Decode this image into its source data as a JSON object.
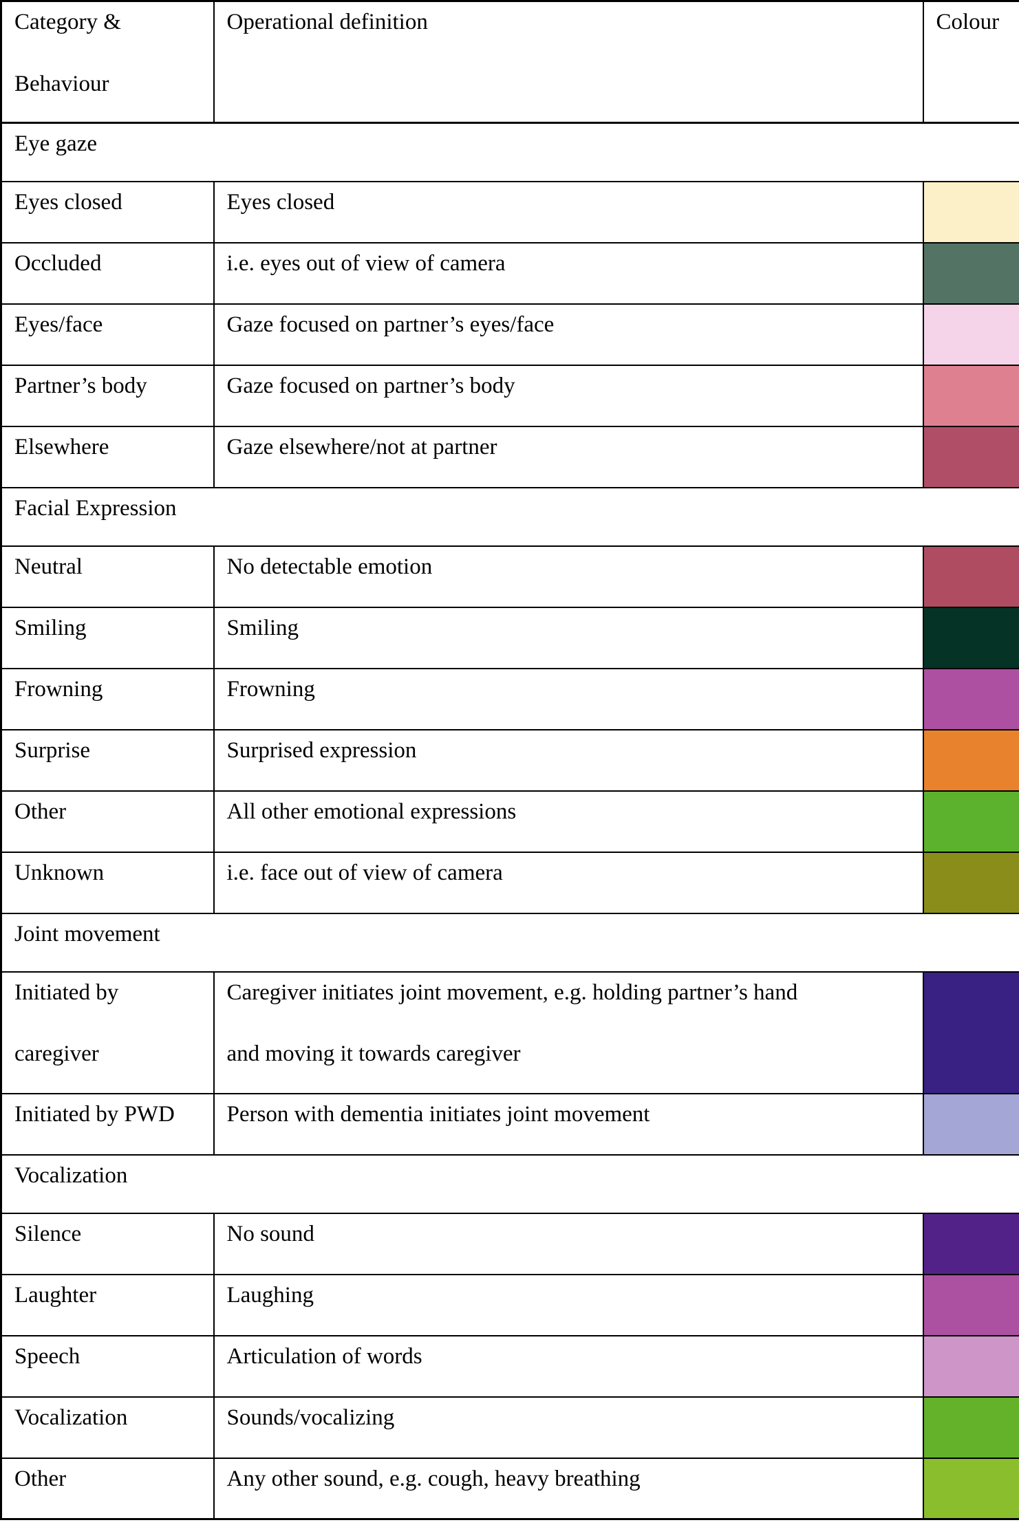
{
  "table": {
    "headers": {
      "category": "Category &\nBehaviour",
      "definition": "Operational definition",
      "colour": "Colour"
    },
    "sections": [
      {
        "title": "Eye gaze",
        "rows": [
          {
            "behaviour": "Eyes closed",
            "definition": "Eyes closed",
            "color": "#FBF0C8"
          },
          {
            "behaviour": "Occluded",
            "definition": "i.e. eyes out of view of camera",
            "color": "#537365"
          },
          {
            "behaviour": "Eyes/face",
            "definition": "Gaze focused on partner’s eyes/face",
            "color": "#F5D3E8"
          },
          {
            "behaviour": "Partner’s body",
            "definition": "Gaze focused on partner’s body",
            "color": "#DF8090"
          },
          {
            "behaviour": "Elsewhere",
            "definition": "Gaze elsewhere/not at partner",
            "color": "#B04E68"
          }
        ]
      },
      {
        "title": "Facial Expression",
        "rows": [
          {
            "behaviour": "Neutral",
            "definition": "No detectable emotion",
            "color": "#B04C62"
          },
          {
            "behaviour": "Smiling",
            "definition": "Smiling",
            "color": "#053325"
          },
          {
            "behaviour": "Frowning",
            "definition": "Frowning",
            "color": "#AD50A2"
          },
          {
            "behaviour": "Surprise",
            "definition": "Surprised expression",
            "color": "#E8822D"
          },
          {
            "behaviour": "Other",
            "definition": "All other emotional expressions",
            "color": "#5CB22C"
          },
          {
            "behaviour": "Unknown",
            "definition": "i.e. face out of view of camera",
            "color": "#8B8D1B"
          }
        ]
      },
      {
        "title": "Joint movement",
        "rows": [
          {
            "behaviour": "Initiated by\ncaregiver",
            "definition": "Caregiver initiates joint movement, e.g. holding partner’s hand\nand moving it towards caregiver",
            "color": "#382182",
            "tall": true
          },
          {
            "behaviour": "Initiated by PWD",
            "definition": "Person with dementia initiates joint movement",
            "color": "#A4A6D6"
          }
        ]
      },
      {
        "title": "Vocalization",
        "rows": [
          {
            "behaviour": "Silence",
            "definition": "No sound",
            "color": "#532289"
          },
          {
            "behaviour": "Laughter",
            "definition": "Laughing",
            "color": "#AC51A1"
          },
          {
            "behaviour": "Speech",
            "definition": "Articulation of words",
            "color": "#CE95C9"
          },
          {
            "behaviour": "Vocalization",
            "definition": "Sounds/vocalizing",
            "color": "#63B22A"
          },
          {
            "behaviour": "Other",
            "definition": "Any other sound, e.g. cough, heavy breathing",
            "color": "#8ABE2C"
          }
        ]
      }
    ]
  }
}
